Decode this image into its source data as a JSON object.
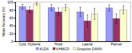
{
  "chart_data": {
    "type": "bar",
    "y_label": "Mean Accuracy (%)",
    "categories": [
      "Cyld. Klyberia",
      "Hook",
      "Lateral",
      "Palmar"
    ],
    "series": [
      {
        "name": "KLDA",
        "color": "#9999ff",
        "values": [
          88,
          86,
          75,
          85
        ],
        "errors": [
          6,
          8,
          12,
          8
        ]
      },
      {
        "name": "KHMCO",
        "color": "#993366",
        "values": [
          80,
          75,
          52,
          58
        ],
        "errors": [
          8,
          10,
          15,
          12
        ]
      },
      {
        "name": "Grupcion DANN",
        "color": "#ffffcc",
        "values": [
          96,
          86,
          70,
          80
        ],
        "errors": [
          4,
          8,
          14,
          10
        ]
      }
    ],
    "ylim": [
      0,
      100
    ],
    "yticks": [
      0,
      20,
      40,
      60,
      80,
      100
    ],
    "grid": false,
    "legend": "bottom"
  }
}
